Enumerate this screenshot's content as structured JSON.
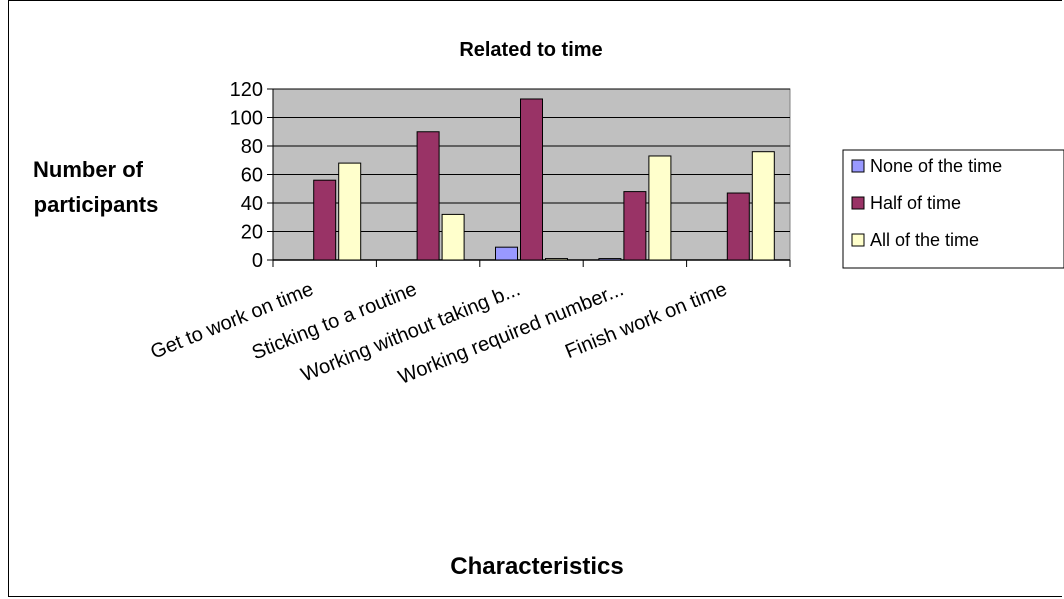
{
  "chart_data": {
    "type": "bar",
    "title": "Related to time",
    "xlabel": "Characteristics",
    "ylabel": "Number of participants",
    "ylabel_lines": [
      "Number of",
      "participants"
    ],
    "categories": [
      "Get to work on time",
      "Sticking to a routine",
      "Working without taking b...",
      "Working required number...",
      "Finish work on time"
    ],
    "series": [
      {
        "name": "None of the time",
        "color": "#9999ff",
        "values": [
          0,
          0,
          9,
          1,
          0
        ]
      },
      {
        "name": "Half of time",
        "color": "#993366",
        "values": [
          56,
          90,
          113,
          48,
          47
        ]
      },
      {
        "name": "All of the time",
        "color": "#ffffcc",
        "values": [
          68,
          32,
          1,
          73,
          76
        ]
      }
    ],
    "ylim": [
      0,
      120
    ],
    "yticks": [
      0,
      20,
      40,
      60,
      80,
      100,
      120
    ],
    "plot_background": "#c0c0c0",
    "grid": true,
    "legend_position": "right"
  }
}
